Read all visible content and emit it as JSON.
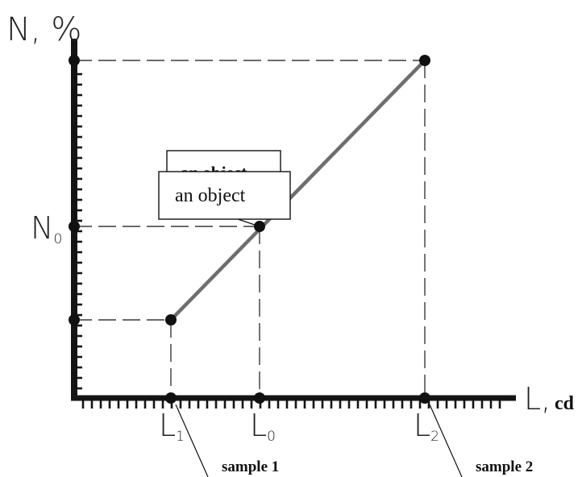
{
  "y_axis": {
    "label": "N, %",
    "tick_label_main": "N",
    "tick_label_sub": "0"
  },
  "x_axis": {
    "label": "L,",
    "unit": "cd"
  },
  "x_ticks": [
    {
      "main": "L",
      "sub": "1"
    },
    {
      "main": "L",
      "sub": "0"
    },
    {
      "main": "L",
      "sub": "2"
    }
  ],
  "callouts": {
    "back_box": "an object",
    "front_box": "an object",
    "sample_1": "sample 1",
    "sample_2": "sample 2"
  },
  "colors": {
    "axis": "#141414",
    "line": "#6e6e6e",
    "dash": "#3a3a3a",
    "dot": "#111111"
  }
}
